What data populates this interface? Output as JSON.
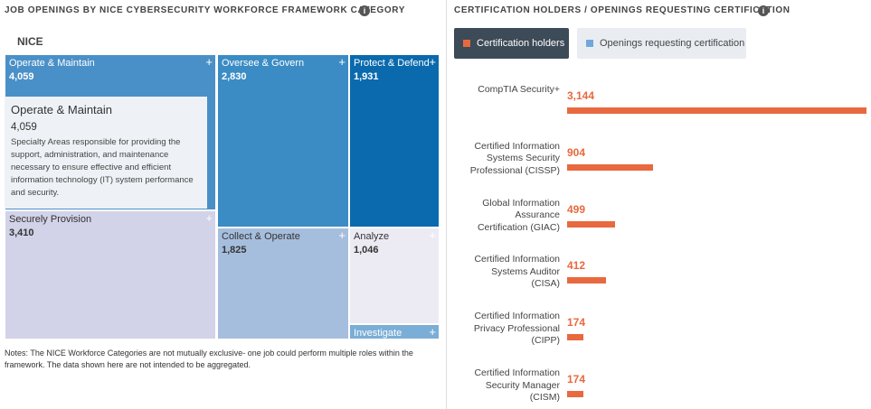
{
  "chart_data": [
    {
      "type": "treemap",
      "title": "JOB OPENINGS BY NICE CYBERSECURITY WORKFORCE FRAMEWORK CATEGORY",
      "root_label": "NICE",
      "categories": [
        "Operate & Maintain",
        "Securely Provision",
        "Oversee & Govern",
        "Protect & Defend",
        "Collect & Operate",
        "Analyze",
        "Investigate"
      ],
      "values": [
        4059,
        3410,
        2830,
        1931,
        1825,
        1046,
        160
      ],
      "value_labels": [
        "4,059",
        "3,410",
        "2,830",
        "1,931",
        "1,825",
        "1,046",
        null
      ],
      "colors": [
        "#4a90c8",
        "#d2d2e8",
        "#3b8cc4",
        "#0a6aad",
        "#a6bedd",
        "#ecebf4",
        "#7aaed6"
      ],
      "tooltip": {
        "title": "Operate & Maintain",
        "value": "4,059",
        "text": "Specialty Areas responsible for providing the support, administration, and maintenance necessary to ensure effective and efficient information technology (IT) system performance and security."
      },
      "notes": "Notes: The NICE Workforce Categories are not mutually exclusive- one job could perform multiple roles within the framework. The data shown here are not intended to be aggregated."
    },
    {
      "type": "bar",
      "title": "CERTIFICATION HOLDERS / OPENINGS REQUESTING CERTIFICATION",
      "orientation": "horizontal",
      "categories": [
        "CompTIA Security+",
        "Certified Information Systems Security Professional (CISSP)",
        "Global Information Assurance Certification (GIAC)",
        "Certified Information Systems Auditor (CISA)",
        "Certified Information Privacy Professional (CIPP)",
        "Certified Information Security Manager (CISM)"
      ],
      "series": [
        {
          "name": "Certification holders",
          "color": "#e8693f",
          "values": [
            3144,
            904,
            499,
            412,
            174,
            174
          ],
          "value_labels": [
            "3,144",
            "904",
            "499",
            "412",
            "174",
            "174"
          ]
        },
        {
          "name": "Openings requesting certification",
          "color": "#6fa8dc",
          "values": [
            null,
            null,
            null,
            null,
            null,
            null
          ]
        }
      ]
    }
  ]
}
